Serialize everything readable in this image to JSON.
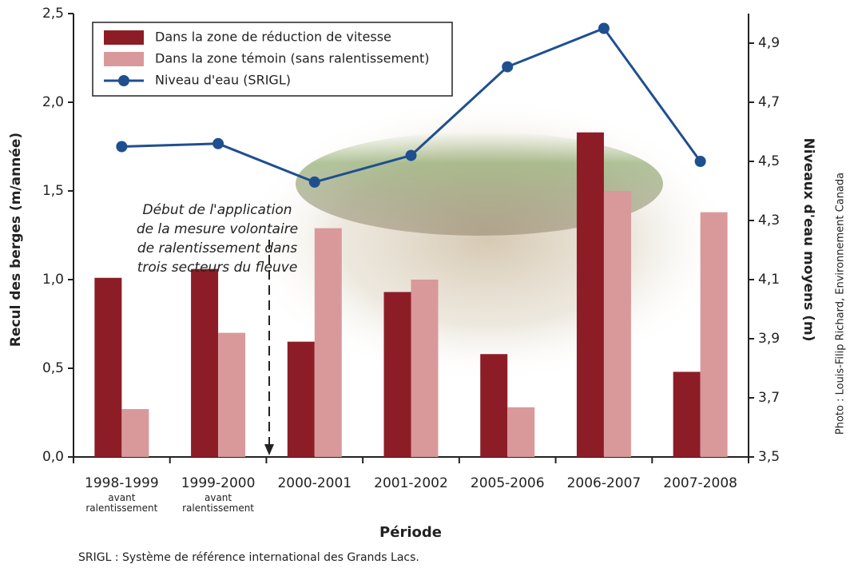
{
  "chart_data": {
    "type": "bar-line",
    "y_label": "Recul des berges (m/année)",
    "y2_label": "Niveaux d'eau moyens (m)",
    "x_label": "Période",
    "footnote": "SRIGL : Système de référence international des Grands Lacs.",
    "credit": "Photo : Louis-Filip Richard, Environnement Canada",
    "annotation": [
      "Début de l'application",
      "de la mesure volontaire",
      "de ralentissement dans",
      "trois secteurs du fleuve"
    ],
    "categories": [
      "1998-1999",
      "1999-2000",
      "2000-2001",
      "2001-2002",
      "2005-2006",
      "2006-2007",
      "2007-2008"
    ],
    "category_notes": [
      "avant ralentissement",
      "avant ralentissement",
      null,
      null,
      null,
      null,
      null
    ],
    "series": [
      {
        "name": "Dans la zone de réduction de vitesse",
        "type": "bar",
        "color": "#8c1d26",
        "values": [
          1.01,
          1.06,
          0.65,
          0.93,
          0.58,
          1.83,
          0.48
        ]
      },
      {
        "name": "Dans la zone témoin (sans ralentissement)",
        "type": "bar",
        "color": "#d9999a",
        "values": [
          0.27,
          0.7,
          1.29,
          1.0,
          0.28,
          1.5,
          1.38
        ]
      },
      {
        "name": "Niveau d'eau (SRIGL)",
        "type": "line",
        "axis": "y2",
        "color": "#1f4f8f",
        "values": [
          4.55,
          4.56,
          4.43,
          4.52,
          4.82,
          4.95,
          4.5
        ]
      }
    ],
    "ylim": [
      0,
      2.5
    ],
    "yticks": [
      {
        "value": 0,
        "label": "0,0"
      },
      {
        "value": 0.5,
        "label": "0,5"
      },
      {
        "value": 1,
        "label": "1,0"
      },
      {
        "value": 1.5,
        "label": "1,5"
      },
      {
        "value": 2,
        "label": "2,0"
      },
      {
        "value": 2.5,
        "label": "2,5"
      }
    ],
    "y2lim": [
      3.5,
      5.0
    ],
    "y2ticks": [
      {
        "value": 3.5,
        "label": "3,5"
      },
      {
        "value": 3.7,
        "label": "3,7"
      },
      {
        "value": 3.9,
        "label": "3,9"
      },
      {
        "value": 4.1,
        "label": "4,1"
      },
      {
        "value": 4.3,
        "label": "4,3"
      },
      {
        "value": 4.5,
        "label": "4,5"
      },
      {
        "value": 4.7,
        "label": "4,7"
      },
      {
        "value": 4.9,
        "label": "4,9"
      }
    ],
    "legend": "upper left"
  }
}
